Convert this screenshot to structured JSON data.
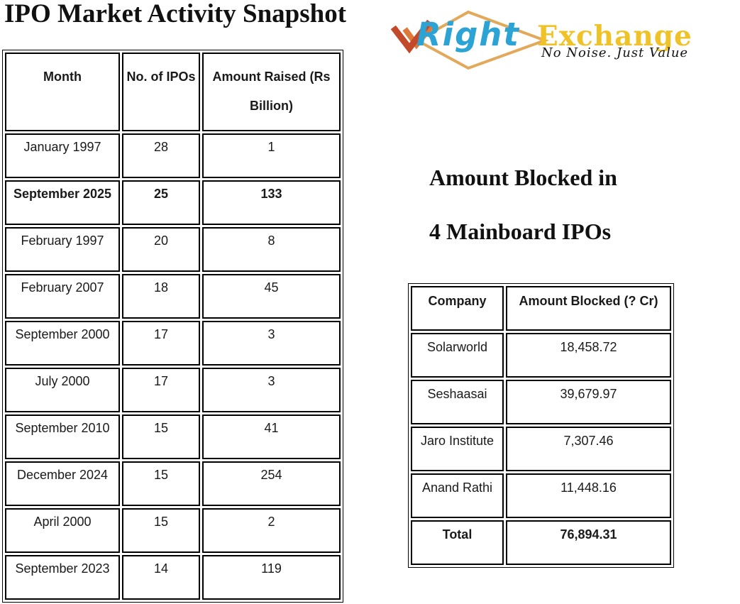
{
  "page": {
    "title": "IPO Market Activity Snapshot"
  },
  "logo": {
    "wordmark_right": "Right",
    "wordmark_exchange": "Exchange",
    "tagline": "No Noise. Just Value",
    "colors": {
      "diamond_outline": "#E3A95A",
      "check_dark": "#C24A2B",
      "check_light": "#DD7A3A",
      "right_text": "#2BA3D4",
      "exchange_text": "#EFC327",
      "tagline_text": "#141414"
    }
  },
  "ipo_table": {
    "headers": [
      "Month",
      "No. of IPOs",
      "Amount Raised (Rs Billion)"
    ],
    "rows": [
      {
        "month": "January 1997",
        "ipos": "28",
        "amount": "1",
        "bold": false
      },
      {
        "month": "September 2025",
        "ipos": "25",
        "amount": "133",
        "bold": true
      },
      {
        "month": "February 1997",
        "ipos": "20",
        "amount": "8",
        "bold": false
      },
      {
        "month": "February 2007",
        "ipos": "18",
        "amount": "45",
        "bold": false
      },
      {
        "month": "September 2000",
        "ipos": "17",
        "amount": "3",
        "bold": false
      },
      {
        "month": "July 2000",
        "ipos": "17",
        "amount": "3",
        "bold": false
      },
      {
        "month": "September 2010",
        "ipos": "15",
        "amount": "41",
        "bold": false
      },
      {
        "month": "December 2024",
        "ipos": "15",
        "amount": "254",
        "bold": false
      },
      {
        "month": "April 2000",
        "ipos": "15",
        "amount": "2",
        "bold": false
      },
      {
        "month": "September 2023",
        "ipos": "14",
        "amount": "119",
        "bold": false
      }
    ]
  },
  "blocked_section": {
    "heading_line1": "Amount Blocked in",
    "heading_line2": "4 Mainboard IPOs",
    "table": {
      "headers": [
        "Company",
        "Amount Blocked (? Cr)"
      ],
      "rows": [
        {
          "company": "Solarworld",
          "amount": "18,458.72",
          "bold": false
        },
        {
          "company": "Seshaasai",
          "amount": "39,679.97",
          "bold": false
        },
        {
          "company": "Jaro Institute",
          "amount": "7,307.46",
          "bold": false
        },
        {
          "company": "Anand Rathi",
          "amount": "11,448.16",
          "bold": false
        },
        {
          "company": "Total",
          "amount": "76,894.31",
          "bold": true
        }
      ]
    }
  }
}
